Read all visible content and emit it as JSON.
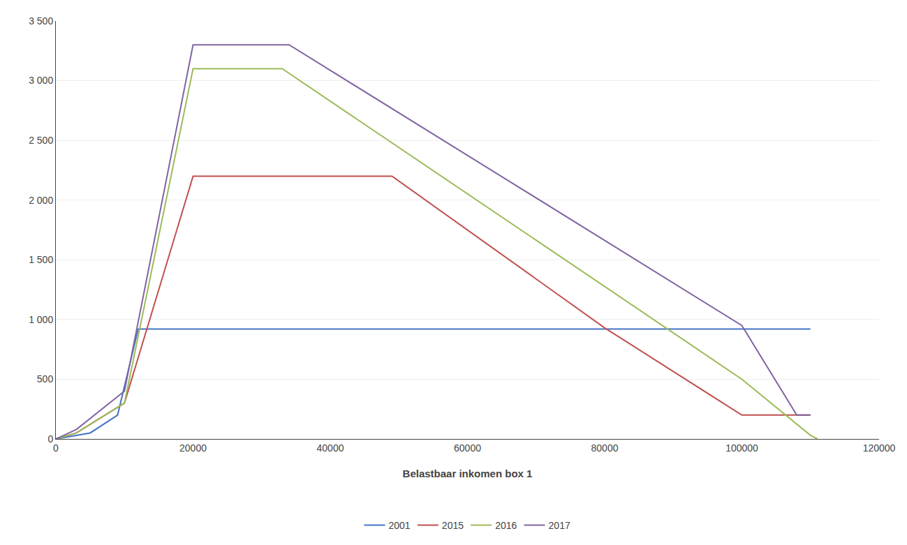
{
  "chart_data": {
    "type": "line",
    "xlabel": "Belastbaar inkomen box 1",
    "series": [
      {
        "name": "2001",
        "color": "#4472C4",
        "x": [
          0,
          5000,
          9000,
          12000,
          20000,
          40000,
          60000,
          80000,
          100000,
          110000
        ],
        "values": [
          0,
          50,
          200,
          920,
          920,
          920,
          920,
          920,
          920,
          920
        ]
      },
      {
        "name": "2015",
        "color": "#C0504D",
        "x": [
          0,
          3000,
          10000,
          20000,
          33000,
          49000,
          80000,
          100000,
          108000,
          110000
        ],
        "values": [
          0,
          50,
          300,
          2200,
          2200,
          2200,
          930,
          200,
          200,
          200
        ]
      },
      {
        "name": "2016",
        "color": "#9BBB59",
        "x": [
          0,
          3000,
          10000,
          20000,
          33000,
          100000,
          110000,
          111000
        ],
        "values": [
          0,
          50,
          300,
          3100,
          3100,
          500,
          30,
          0
        ]
      },
      {
        "name": "2017",
        "color": "#8064A2",
        "x": [
          0,
          3000,
          10000,
          20000,
          34000,
          100000,
          108000,
          110000
        ],
        "values": [
          0,
          80,
          400,
          3300,
          3300,
          950,
          200,
          200
        ]
      }
    ],
    "xlim": [
      0,
      120000
    ],
    "xticks": [
      0,
      20000,
      40000,
      60000,
      80000,
      100000,
      120000
    ],
    "ylim": [
      0,
      3500
    ],
    "yticks": [
      0,
      500,
      {
        "value": 1000,
        "label": "1 000"
      },
      {
        "value": 1500,
        "label": "1 500"
      },
      {
        "value": 2000,
        "label": "2 000"
      },
      {
        "value": 2500,
        "label": "2 500"
      },
      {
        "value": 3000,
        "label": "3 000"
      },
      {
        "value": 3500,
        "label": "3 500"
      }
    ],
    "grid": "y",
    "legend": "bottom"
  }
}
